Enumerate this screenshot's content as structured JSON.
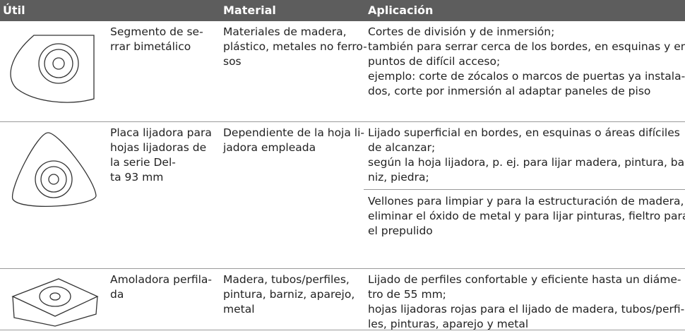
{
  "table": {
    "header": [
      "Útil",
      "Material",
      "Aplicación"
    ],
    "rows": [
      {
        "name": [
          "Segmento de se-",
          "rrar bimetálico"
        ],
        "material": [
          "Materiales de madera,",
          "plástico, metales no ferro-",
          "sos"
        ],
        "application": [
          [
            "Cortes de división y de inmersión;",
            "también para serrar cerca de los bordes, en esquinas y en",
            "puntos de difícil acceso;",
            "ejemplo: corte de zócalos o marcos de puertas ya instala-",
            "dos, corte por inmersión al adaptar paneles de piso"
          ]
        ]
      },
      {
        "name": [
          "Placa lijadora para",
          "hojas lijadoras de",
          "la serie Del-",
          "ta 93 mm"
        ],
        "material": [
          "Dependiente de la hoja li-",
          "jadora empleada"
        ],
        "application": [
          [
            "Lijado superficial en bordes, en esquinas o áreas difíciles",
            "de alcanzar;",
            "según la hoja lijadora, p. ej. para lijar madera, pintura, bar",
            "niz, piedra;"
          ],
          [
            "Vellones para limpiar y para la estructuración de madera,",
            "eliminar el óxido de metal y para lijar pinturas, fieltro para",
            "el prepulido"
          ]
        ]
      },
      {
        "name": [
          "Amoladora perfila-",
          "da"
        ],
        "material": [
          "Madera, tubos/perfiles,",
          "pintura, barniz, aparejo,",
          "metal"
        ],
        "application": [
          [
            "Lijado de perfiles confortable y eficiente hasta un diáme-",
            "tro de 55 mm;",
            "hojas lijadoras rojas para el lijado de madera, tubos/perfi-",
            "les, pinturas, aparejo y metal"
          ]
        ]
      }
    ]
  }
}
